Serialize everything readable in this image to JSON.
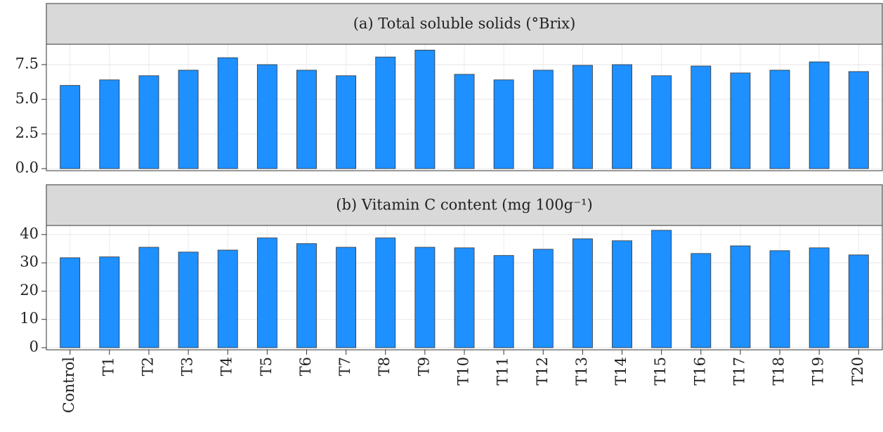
{
  "chart_data": [
    {
      "type": "bar",
      "title": "(a) Total soluble solids (°Brix)",
      "values": [
        6.0,
        6.4,
        6.7,
        7.1,
        8.0,
        7.5,
        7.1,
        6.7,
        8.05,
        8.55,
        6.8,
        6.4,
        7.1,
        7.45,
        7.5,
        6.7,
        7.4,
        6.9,
        7.1,
        7.7,
        7.0
      ],
      "color": "#1e90ff",
      "ylim": [
        -0.15,
        8.97
      ],
      "yticks": [
        {
          "value": 0,
          "label": "0.0"
        },
        {
          "value": 2.5,
          "label": "2.5"
        },
        {
          "value": 5,
          "label": "5.0"
        },
        {
          "value": 7.5,
          "label": "7.5"
        }
      ],
      "grid": true
    },
    {
      "type": "bar",
      "title": "(b) Vitamin C content (mg 100g⁻¹)",
      "categories": [
        "Control",
        "T1",
        "T2",
        "T3",
        "T4",
        "T5",
        "T6",
        "T7",
        "T8",
        "T9",
        "T10",
        "T11",
        "T12",
        "T13",
        "T14",
        "T15",
        "T16",
        "T17",
        "T18",
        "T19",
        "T20"
      ],
      "values": [
        31.8,
        32.1,
        35.5,
        33.8,
        34.5,
        38.8,
        36.8,
        35.5,
        38.8,
        35.5,
        35.3,
        32.6,
        34.8,
        38.5,
        37.8,
        41.5,
        33.3,
        36.0,
        34.3,
        35.3,
        32.8
      ],
      "color": "#1e90ff",
      "ylim": [
        -0.75,
        43.2
      ],
      "yticks": [
        0,
        10,
        20,
        30,
        40
      ],
      "grid": true
    }
  ]
}
